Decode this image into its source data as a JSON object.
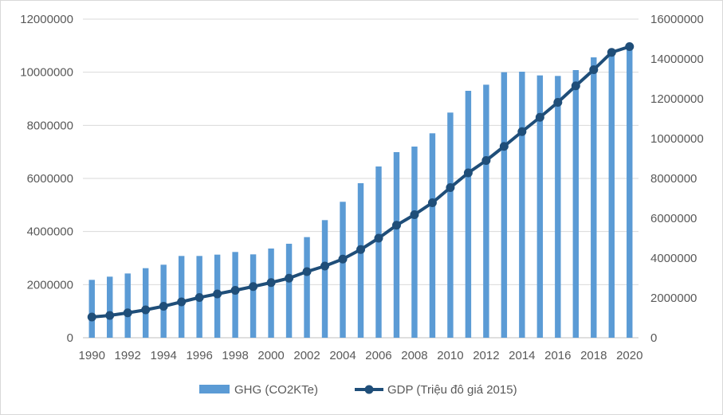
{
  "chart_data": {
    "type": "bar+line",
    "x": [
      1990,
      1991,
      1992,
      1993,
      1994,
      1995,
      1996,
      1997,
      1998,
      1999,
      2000,
      2001,
      2002,
      2003,
      2004,
      2005,
      2006,
      2007,
      2008,
      2009,
      2010,
      2011,
      2012,
      2013,
      2014,
      2015,
      2016,
      2017,
      2018,
      2019,
      2020
    ],
    "x_tick_labels": [
      "1990",
      "1992",
      "1994",
      "1996",
      "1998",
      "2000",
      "2002",
      "2004",
      "2006",
      "2008",
      "2010",
      "2012",
      "2014",
      "2016",
      "2018",
      "2020"
    ],
    "series": [
      {
        "name": "GHG (CO2KTe)",
        "type": "bar",
        "axis": "left",
        "color": "#5b9bd5",
        "values": [
          2180000,
          2300000,
          2420000,
          2620000,
          2750000,
          3080000,
          3080000,
          3130000,
          3230000,
          3140000,
          3360000,
          3540000,
          3790000,
          4430000,
          5120000,
          5820000,
          6450000,
          6990000,
          7200000,
          7700000,
          8480000,
          9300000,
          9530000,
          10000000,
          10020000,
          9880000,
          9860000,
          10080000,
          10560000,
          10860000,
          11000000
        ]
      },
      {
        "name": "GDP (Triệu đô giá 2015)",
        "type": "line",
        "axis": "right",
        "color": "#1f4e79",
        "values": [
          1040000,
          1120000,
          1250000,
          1400000,
          1580000,
          1800000,
          2020000,
          2200000,
          2380000,
          2570000,
          2770000,
          2990000,
          3320000,
          3600000,
          3950000,
          4430000,
          5000000,
          5650000,
          6180000,
          6780000,
          7540000,
          8280000,
          8900000,
          9610000,
          10350000,
          11070000,
          11820000,
          12650000,
          13460000,
          14330000,
          14620000
        ]
      }
    ],
    "y_left": {
      "min": 0,
      "max": 12000000,
      "step": 2000000,
      "ticks": [
        "0",
        "2000000",
        "4000000",
        "6000000",
        "8000000",
        "10000000",
        "12000000"
      ]
    },
    "y_right": {
      "min": 0,
      "max": 16000000,
      "step": 2000000,
      "ticks": [
        "0",
        "2000000",
        "4000000",
        "6000000",
        "8000000",
        "10000000",
        "12000000",
        "14000000",
        "16000000"
      ]
    },
    "grid": true,
    "legend_position": "bottom-center",
    "title": "",
    "xlabel": "",
    "ylabel": ""
  },
  "legend": {
    "bar_label": "GHG (CO2KTe)",
    "line_label": "GDP (Triệu đô giá 2015)"
  }
}
